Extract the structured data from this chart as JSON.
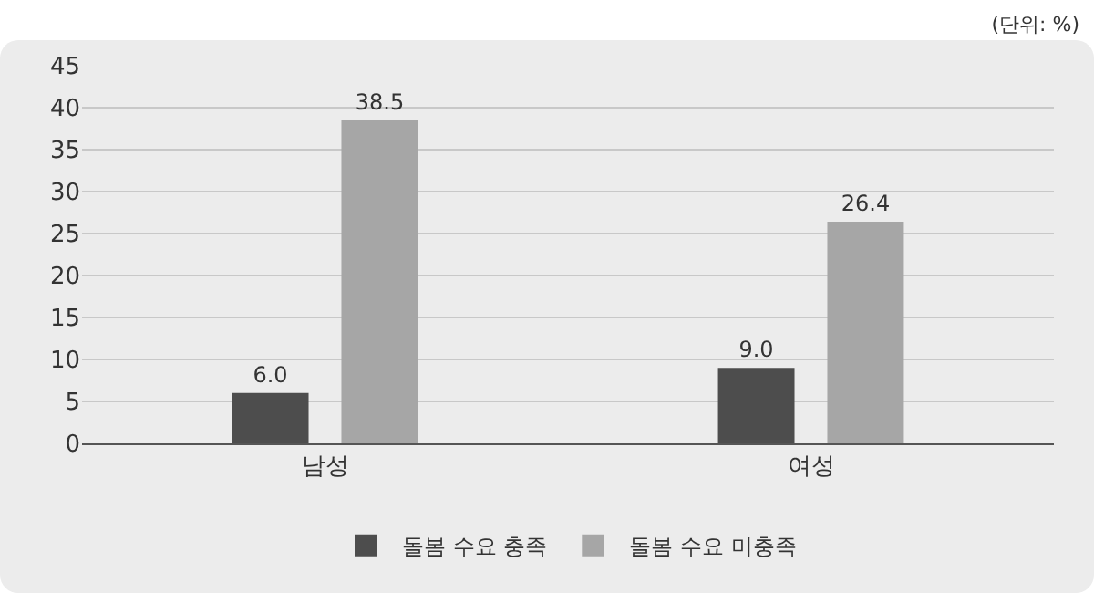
{
  "chart_data": {
    "type": "bar",
    "categories": [
      "남성",
      "여성"
    ],
    "series": [
      {
        "name": "돌봄 수요 충족",
        "color": "#4d4d4d",
        "values": [
          6.0,
          9.0
        ],
        "value_labels": [
          "6.0",
          "9.0"
        ]
      },
      {
        "name": "돌봄 수요 미충족",
        "color": "#a6a6a6",
        "values": [
          38.5,
          26.4
        ],
        "value_labels": [
          "38.5",
          "26.4"
        ]
      }
    ],
    "ylim": [
      0,
      45
    ],
    "yticks": [
      0,
      5,
      10,
      15,
      20,
      25,
      30,
      35,
      40,
      45
    ],
    "grid": "y",
    "legend": "bottom",
    "annotations": [
      "(단위: %)"
    ]
  }
}
